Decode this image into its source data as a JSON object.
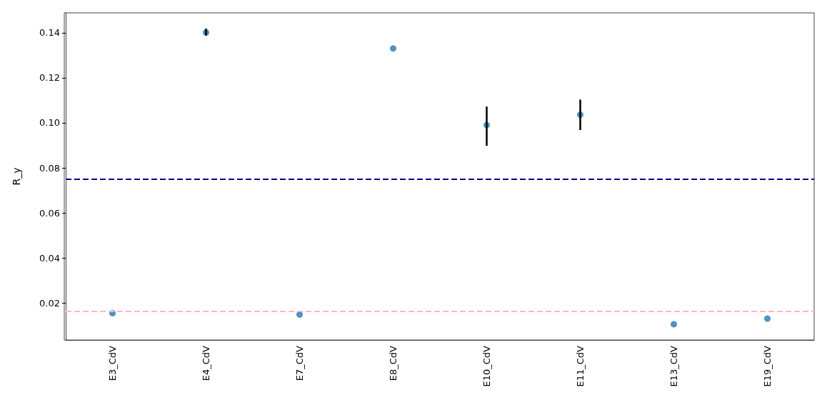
{
  "chart_data": {
    "type": "scatter",
    "ylabel": "R_y",
    "categories": [
      "E3_CdV",
      "E4_CdV",
      "E7_CdV",
      "E8_CdV",
      "E10_CdV",
      "E11_CdV",
      "E13_CdV",
      "E19_CdV"
    ],
    "series": [
      {
        "color": "#1f77b4",
        "values": [
          0.0155,
          0.1401,
          0.0149,
          0.133,
          0.099,
          0.1036,
          0.0106,
          0.0131
        ],
        "errors": [
          null,
          [
            0.1387,
            0.1418
          ],
          null,
          null,
          [
            0.0898,
            0.1072
          ],
          [
            0.0968,
            0.1103
          ],
          null,
          null
        ]
      }
    ],
    "ylim": [
      0.0036,
      0.1488
    ],
    "yticks": [
      0.02,
      0.04,
      0.06,
      0.08,
      {
        "value": 0.1,
        "label": "0.10"
      },
      0.12,
      0.14
    ],
    "ref_lines": [
      {
        "axis": "y",
        "value": 0.075,
        "color": "#00008b",
        "line_style": "dashed"
      },
      {
        "axis": "y",
        "value": 0.0165,
        "color": "#ffb6c1",
        "line_style": "dashed"
      }
    ],
    "grid": false,
    "marker": "circle"
  }
}
